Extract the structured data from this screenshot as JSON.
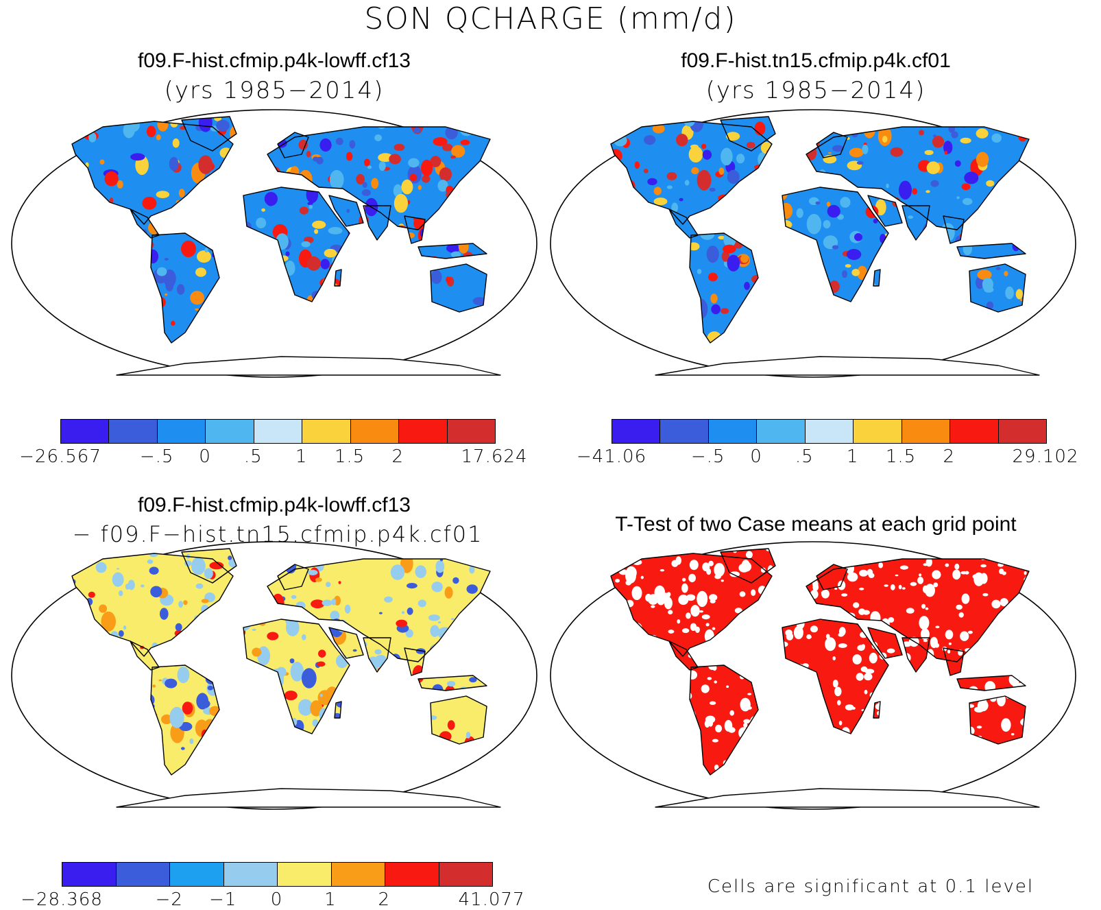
{
  "main_title": "SON QCHARGE (mm/d)",
  "panels": [
    {
      "title": "f09.F-hist.cfmip.p4k-lowff.cf13",
      "subtitle": "(yrs 1985−2014)",
      "palette": "case"
    },
    {
      "title": "f09.F-hist.tn15.cfmip.p4k.cf01",
      "subtitle": "(yrs 1985−2014)",
      "palette": "case"
    },
    {
      "title": "f09.F-hist.cfmip.p4k-lowff.cf13",
      "subtitle": "− f09.F−hist.tn15.cfmip.p4k.cf01",
      "palette": "diff"
    },
    {
      "title": "T-Test of two Case means at each grid point",
      "subtitle": "",
      "palette": "ttest"
    }
  ],
  "colorbars": [
    {
      "colors": [
        "#3a1ef0",
        "#3b5ddc",
        "#1e8ff0",
        "#4fb6f0",
        "#c8e6f8",
        "#f9d23c",
        "#f98c10",
        "#f81a10",
        "#d42d2d"
      ],
      "labels": [
        "−26.567",
        "−.5",
        "0",
        ".5",
        "1",
        "1.5",
        "2",
        "17.624"
      ]
    },
    {
      "colors": [
        "#3a1ef0",
        "#3b5ddc",
        "#1e8ff0",
        "#4fb6f0",
        "#c8e6f8",
        "#f9d23c",
        "#f98c10",
        "#f81a10",
        "#d42d2d"
      ],
      "labels": [
        "−41.06",
        "−.5",
        "0",
        ".5",
        "1",
        "1.5",
        "2",
        "29.102"
      ]
    },
    {
      "colors": [
        "#3a1ef0",
        "#3b5ddc",
        "#1ea0f0",
        "#96ccee",
        "#f8ec6a",
        "#f99c18",
        "#f81a10",
        "#d42d2d"
      ],
      "labels": [
        "−28.368",
        "−2",
        "−1",
        "0",
        "1",
        "2",
        "41.077"
      ]
    }
  ],
  "significance_note": "Cells are significant at 0.1 level",
  "colors": {
    "ocean": "#ffffff",
    "significant": "#f81a10",
    "coast": "#000000"
  }
}
